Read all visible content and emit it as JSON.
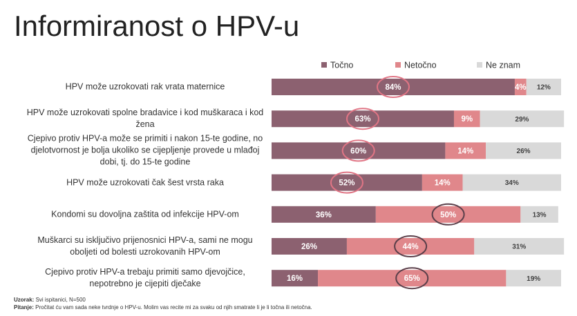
{
  "chart_data": {
    "type": "stacked-bar",
    "title": "Informiranost o HPV-u",
    "categories": [
      "HPV može uzrokovati rak vrata maternice",
      "HPV može uzrokovati spolne bradavice i kod muškaraca i kod žena",
      "Cjepivo protiv HPV-a može se primiti i nakon 15-te godine, no djelotvornost je bolja ukoliko se cijepljenje provede u mlađoj dobi, tj. do 15-te godine",
      "HPV može uzrokovati čak šest vrsta raka",
      "Kondomi su dovoljna zaštita od infekcije HPV-om",
      "Muškarci su isključivo prijenosnici HPV-a, sami ne mogu oboljeti od bolesti uzrokovanih HPV-om",
      "Cjepivo protiv HPV-a trebaju primiti samo djevojčice, nepotrebno je cijepiti dječake"
    ],
    "series": [
      {
        "name": "Točno",
        "color": "#8c6170",
        "label_color": "#ffffff",
        "values": [
          84,
          63,
          60,
          52,
          36,
          26,
          16
        ],
        "value_labels": [
          "84%",
          "63%",
          "60%",
          "52%",
          "36%",
          "26%",
          "16%"
        ]
      },
      {
        "name": "Netočno",
        "color": "#e0878b",
        "label_color": "#ffffff",
        "values": [
          4,
          9,
          14,
          14,
          50,
          44,
          65
        ],
        "value_labels": [
          "4%",
          "9%",
          "14%",
          "14%",
          "50%",
          "44%",
          "65%"
        ]
      },
      {
        "name": "Ne znam",
        "color": "#d9d9d9",
        "label_color": "#404040",
        "values": [
          12,
          29,
          26,
          34,
          13,
          31,
          19
        ],
        "value_labels": [
          "12%",
          "29%",
          "26%",
          "34%",
          "13%",
          "31%",
          "19%"
        ]
      }
    ],
    "highlight_series": [
      0,
      0,
      0,
      0,
      1,
      1,
      1
    ],
    "highlight_colors": [
      "#e07585",
      "#5a3f4a"
    ],
    "xlim": [
      0,
      100
    ],
    "legend": "top",
    "notes": [
      {
        "label": "Uzorak:",
        "text": "Svi ispitanici, N=500"
      },
      {
        "label": "Pitanje:",
        "text": "Pročitat ću vam sada neke tvrdnje o HPV-u. Molim vas recite mi za svaku od njih smatrate li je li točna ili netočna."
      }
    ]
  }
}
